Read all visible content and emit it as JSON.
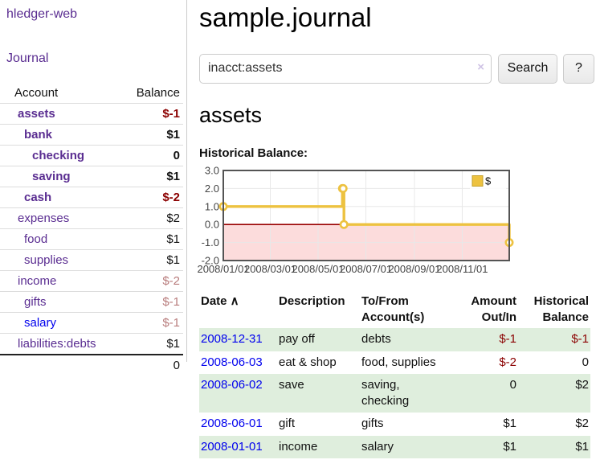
{
  "sidebar": {
    "brand": "hledger-web",
    "journal_label": "Journal",
    "accounts_table": {
      "headers": {
        "account": "Account",
        "balance": "Balance"
      },
      "rows": [
        {
          "name": "assets",
          "indent": 1,
          "bold": true,
          "balance": "$-1"
        },
        {
          "name": "bank",
          "indent": 2,
          "bold": true,
          "balance": "$1"
        },
        {
          "name": "checking",
          "indent": 3,
          "bold": true,
          "balance": "0"
        },
        {
          "name": "saving",
          "indent": 3,
          "bold": true,
          "balance": "$1"
        },
        {
          "name": "cash",
          "indent": 2,
          "bold": true,
          "balance": "$-2"
        },
        {
          "name": "expenses",
          "indent": 1,
          "bold": false,
          "balance": "$2"
        },
        {
          "name": "food",
          "indent": 2,
          "bold": false,
          "balance": "$1"
        },
        {
          "name": "supplies",
          "indent": 2,
          "bold": false,
          "balance": "$1"
        },
        {
          "name": "income",
          "indent": 1,
          "bold": false,
          "balance": "$-2"
        },
        {
          "name": "gifts",
          "indent": 2,
          "bold": false,
          "balance": "$-1"
        },
        {
          "name": "salary",
          "indent": 2,
          "bold": false,
          "balance": "$-1",
          "link_style": "blue"
        },
        {
          "name": "liabilities:debts",
          "indent": 1,
          "bold": false,
          "balance": "$1"
        }
      ],
      "total": "0"
    }
  },
  "header": {
    "title": "sample.journal"
  },
  "search": {
    "value": "inacct:assets",
    "clear_icon": "×",
    "search_button": "Search",
    "help_button": "?"
  },
  "account_page": {
    "title": "assets",
    "section_label": "Historical Balance:"
  },
  "chart_data": {
    "type": "line",
    "step": true,
    "title": "Historical Balance:",
    "series": [
      {
        "name": "$",
        "color": "#edc240",
        "points": [
          [
            "2008-01-01",
            1
          ],
          [
            "2008-06-01",
            2
          ],
          [
            "2008-06-02",
            2
          ],
          [
            "2008-06-03",
            0
          ],
          [
            "2008-12-31",
            -1
          ]
        ]
      }
    ],
    "x_range": [
      "2008-01-01",
      "2008-12-31"
    ],
    "ylim": [
      -2,
      3
    ],
    "y_ticks": [
      "3.0",
      "2.0",
      "1.0",
      "0.0",
      "-1.0",
      "-2.0"
    ],
    "x_ticks": [
      {
        "date": "2008-01-01",
        "label": "2008/01/01"
      },
      {
        "date": "2008-03-01",
        "label": "2008/03/01"
      },
      {
        "date": "2008-05-01",
        "label": "2008/05/01"
      },
      {
        "date": "2008-07-01",
        "label": "2008/07/01"
      },
      {
        "date": "2008-09-01",
        "label": "2008/09/01"
      },
      {
        "date": "2008-11-01",
        "label": "2008/11/01"
      }
    ],
    "grid": true,
    "legend": {
      "label": "$",
      "position": "top-right"
    },
    "colors": {
      "line": "#e9c33f",
      "marker_fill": "#ffffff",
      "negative_region": "#fcdcdc",
      "zero_line": "#990000",
      "border": "#545454",
      "gridline": "#e8e8e8",
      "tick_text": "#444444"
    }
  },
  "register_table": {
    "sort_icon": "∧",
    "headers": [
      {
        "label": "Date",
        "sublabel": "",
        "sorted": true
      },
      {
        "label": "Description",
        "sublabel": ""
      },
      {
        "label": "To/From",
        "sublabel": "Account(s)"
      },
      {
        "label": "Amount",
        "sublabel": "Out/In",
        "numeric": true
      },
      {
        "label": "Historical",
        "sublabel": "Balance",
        "numeric": true
      }
    ],
    "rows": [
      {
        "date": "2008-12-31",
        "description": "pay off",
        "accounts": "debts",
        "amount": "$-1",
        "balance": "$-1"
      },
      {
        "date": "2008-06-03",
        "description": "eat & shop",
        "accounts": "food, supplies",
        "amount": "$-2",
        "balance": "0"
      },
      {
        "date": "2008-06-02",
        "description": "save",
        "accounts": "saving, checking",
        "amount": "0",
        "balance": "$2"
      },
      {
        "date": "2008-06-01",
        "description": "gift",
        "accounts": "gifts",
        "amount": "$1",
        "balance": "$2"
      },
      {
        "date": "2008-01-01",
        "description": "income",
        "accounts": "salary",
        "amount": "$1",
        "balance": "$1"
      }
    ]
  },
  "colors": {
    "link_purple": "#5a2d91",
    "link_blue": "#0000ee",
    "negative_strong": "#8b0000",
    "negative_faded": "#b87c7c",
    "row_green": "#dfeedd"
  }
}
